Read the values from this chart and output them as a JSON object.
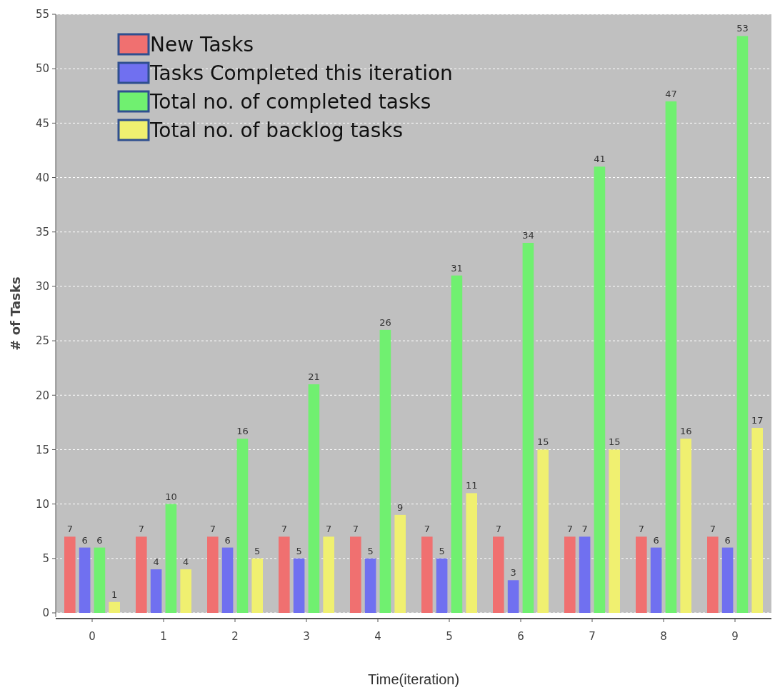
{
  "chart_data": {
    "type": "bar",
    "xlabel": "Time(iteration)",
    "ylabel": "# of Tasks",
    "categories": [
      "0",
      "1",
      "2",
      "3",
      "4",
      "5",
      "6",
      "7",
      "8",
      "9"
    ],
    "series": [
      {
        "name": "New Tasks",
        "color": "#f07070",
        "values": [
          7,
          7,
          7,
          7,
          7,
          7,
          7,
          7,
          7,
          7
        ]
      },
      {
        "name": "Tasks Completed this iteration",
        "color": "#7070f0",
        "values": [
          6,
          4,
          6,
          5,
          5,
          5,
          3,
          7,
          6,
          6
        ]
      },
      {
        "name": "Total no. of completed tasks",
        "color": "#70f070",
        "values": [
          6,
          10,
          16,
          21,
          26,
          31,
          34,
          41,
          47,
          53
        ]
      },
      {
        "name": "Total no. of backlog tasks",
        "color": "#f0f070",
        "values": [
          1,
          4,
          5,
          7,
          9,
          11,
          15,
          15,
          16,
          17
        ]
      }
    ],
    "ylim": [
      0,
      55
    ],
    "yticks": [
      0,
      5,
      10,
      15,
      20,
      25,
      30,
      35,
      40,
      45,
      50,
      55
    ],
    "grid": "y",
    "legend": "top left",
    "data_labels": true
  }
}
